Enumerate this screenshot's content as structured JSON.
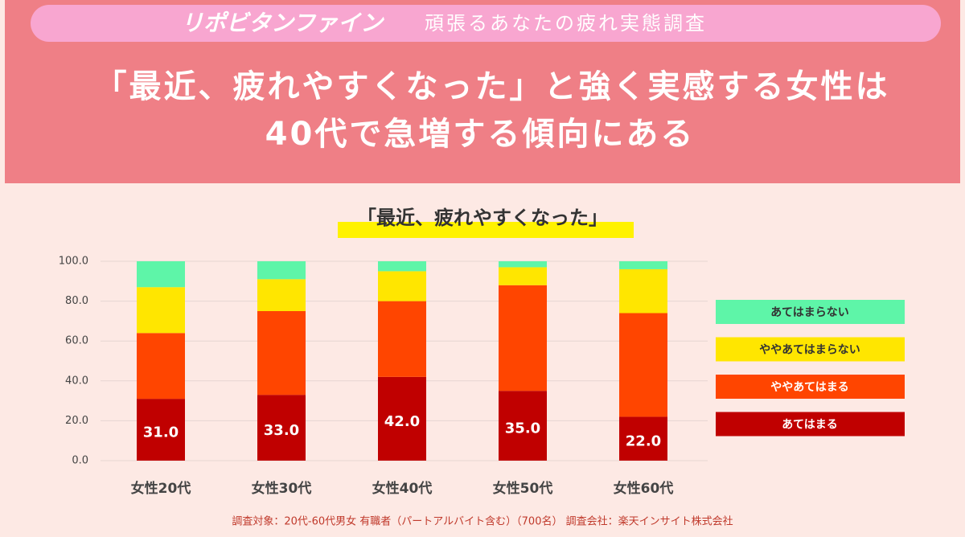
{
  "header": {
    "brand": "リポビタンファイン",
    "survey_title": "頑張るあなたの疲れ実態調査",
    "headline": [
      "「最近、疲れやすくなった」と強く実感する女性は",
      "40代で急増する傾向にある"
    ]
  },
  "chart_data": {
    "type": "stacked_bar",
    "title": "「最近、疲れやすくなった」",
    "categories": [
      "女性20代",
      "女性30代",
      "女性40代",
      "女性50代",
      "女性60代"
    ],
    "series": [
      {
        "name": "あてはまる",
        "color": "#c00000",
        "values": [
          31,
          33,
          42,
          35,
          22
        ],
        "value_labels": [
          "31.0",
          "33.0",
          "42.0",
          "35.0",
          "22.0"
        ]
      },
      {
        "name": "ややあてはまる",
        "color": "#ff4500",
        "values": [
          33,
          42,
          38,
          53,
          52
        ]
      },
      {
        "name": "ややあてはまらない",
        "color": "#ffe600",
        "values": [
          23,
          16,
          15,
          9,
          22
        ]
      },
      {
        "name": "あてはまらない",
        "color": "#5ef5a8",
        "values": [
          13,
          9,
          5,
          3,
          4
        ]
      }
    ],
    "ylim": [
      0,
      100
    ],
    "yticks": [
      {
        "value": 0,
        "label": "0.0"
      },
      {
        "value": 20,
        "label": "20.0"
      },
      {
        "value": 40,
        "label": "40.0"
      },
      {
        "value": 60,
        "label": "60.0"
      },
      {
        "value": 80,
        "label": "80.0"
      },
      {
        "value": 100,
        "label": "100.0"
      }
    ],
    "grid": true,
    "legend": "right"
  },
  "footnote": "調査対象：20代-60代男女 有職者（パートアルバイト含む）（700名） 調査会社：楽天インサイト株式会社"
}
